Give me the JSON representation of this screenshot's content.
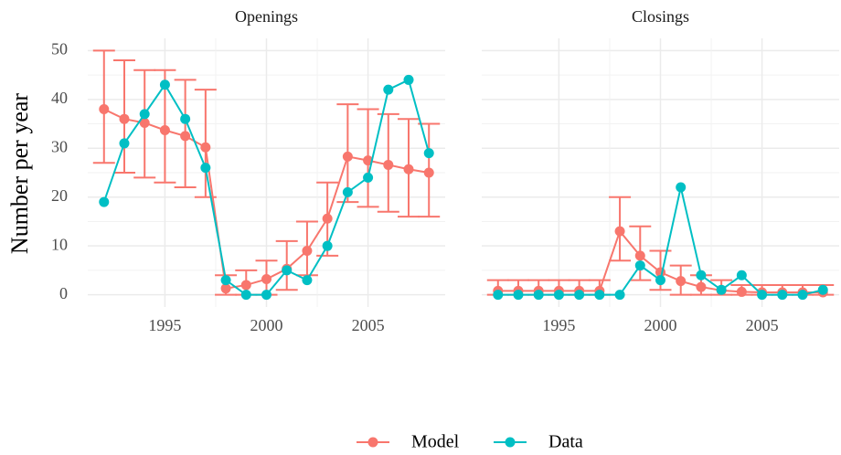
{
  "chart_data": {
    "type": "line",
    "facets": [
      "Openings",
      "Closings"
    ],
    "y_label": "Number per year",
    "x": [
      1992,
      1993,
      1994,
      1995,
      1996,
      1997,
      1998,
      1999,
      2000,
      2001,
      2002,
      2003,
      2004,
      2005,
      2006,
      2007,
      2008
    ],
    "xlim": [
      1991.2,
      2008.8
    ],
    "xticks": [
      1995,
      2000,
      2005
    ],
    "ylim": [
      -2.5,
      52.5
    ],
    "yticks": [
      0,
      10,
      20,
      30,
      40,
      50
    ],
    "grid": true,
    "legend": "bottom",
    "series": [
      {
        "name": "Model",
        "color": "#F8766D",
        "values": [
          [
            38,
            36,
            35.2,
            33.7,
            32.5,
            30.2,
            1.3,
            2,
            3.2,
            5.3,
            9,
            15.6,
            28.3,
            27.5,
            26.6,
            25.7,
            25
          ],
          [
            0.8,
            0.8,
            0.8,
            0.8,
            0.8,
            0.8,
            13,
            8,
            4.6,
            2.8,
            1.6,
            0.9,
            0.6,
            0.5,
            0.5,
            0.5,
            0.5
          ]
        ],
        "lower": [
          [
            27,
            25,
            24,
            23,
            22,
            20,
            0,
            0,
            0,
            1,
            4,
            8,
            19,
            18,
            17,
            16,
            16
          ],
          [
            0,
            0,
            0,
            0,
            0,
            0,
            7,
            3,
            1,
            0,
            0,
            0,
            0,
            0,
            0,
            0,
            0
          ]
        ],
        "upper": [
          [
            50,
            48,
            46,
            46,
            44,
            42,
            4,
            5,
            7,
            11,
            15,
            23,
            39,
            38,
            37,
            36,
            35
          ],
          [
            3,
            3,
            3,
            3,
            3,
            3,
            20,
            14,
            9,
            6,
            4,
            3,
            2,
            2,
            2,
            2,
            2
          ]
        ]
      },
      {
        "name": "Data",
        "color": "#00BFC4",
        "values": [
          [
            19,
            31,
            37,
            43,
            36,
            26,
            3,
            0,
            0,
            5,
            3,
            10,
            21,
            24,
            42,
            44,
            29
          ],
          [
            0,
            0,
            0,
            0,
            0,
            0,
            0,
            6,
            3,
            22,
            4,
            1,
            4,
            0,
            0,
            0,
            1
          ]
        ]
      }
    ]
  }
}
